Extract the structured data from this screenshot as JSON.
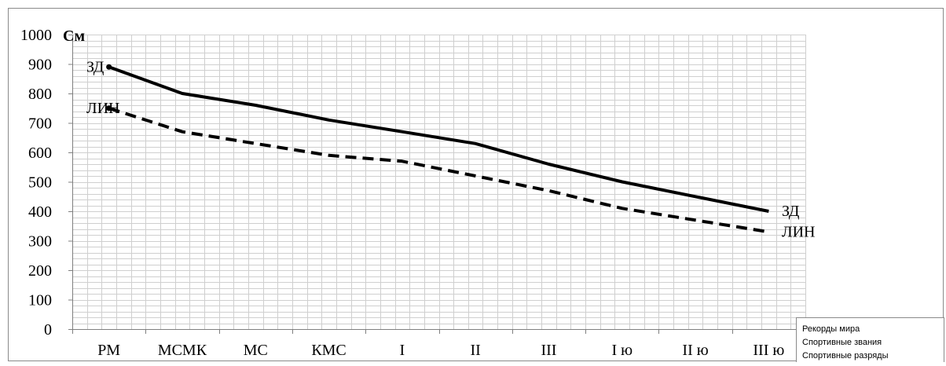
{
  "chart_data": {
    "type": "line",
    "categories": [
      "РМ",
      "МСМК",
      "МС",
      "КМС",
      "I",
      "II",
      "III",
      "I ю",
      "II ю",
      "III ю"
    ],
    "series": [
      {
        "name": "ЗД",
        "style": "solid",
        "color": "#000000",
        "values": [
          890,
          800,
          760,
          710,
          670,
          630,
          560,
          500,
          450,
          400
        ]
      },
      {
        "name": "ЛИН",
        "style": "dashed",
        "color": "#000000",
        "values": [
          750,
          670,
          630,
          590,
          570,
          520,
          470,
          410,
          370,
          330
        ]
      }
    ],
    "ylabel": "См",
    "ylim": [
      0,
      1000
    ],
    "yticks": [
      0,
      100,
      200,
      300,
      400,
      500,
      600,
      700,
      800,
      900,
      1000
    ],
    "grid": true,
    "legend": {
      "placement": "bottom-right",
      "entries": [
        "Рекорды мира",
        "Спортивные звания",
        "Спортивные разряды"
      ]
    }
  }
}
